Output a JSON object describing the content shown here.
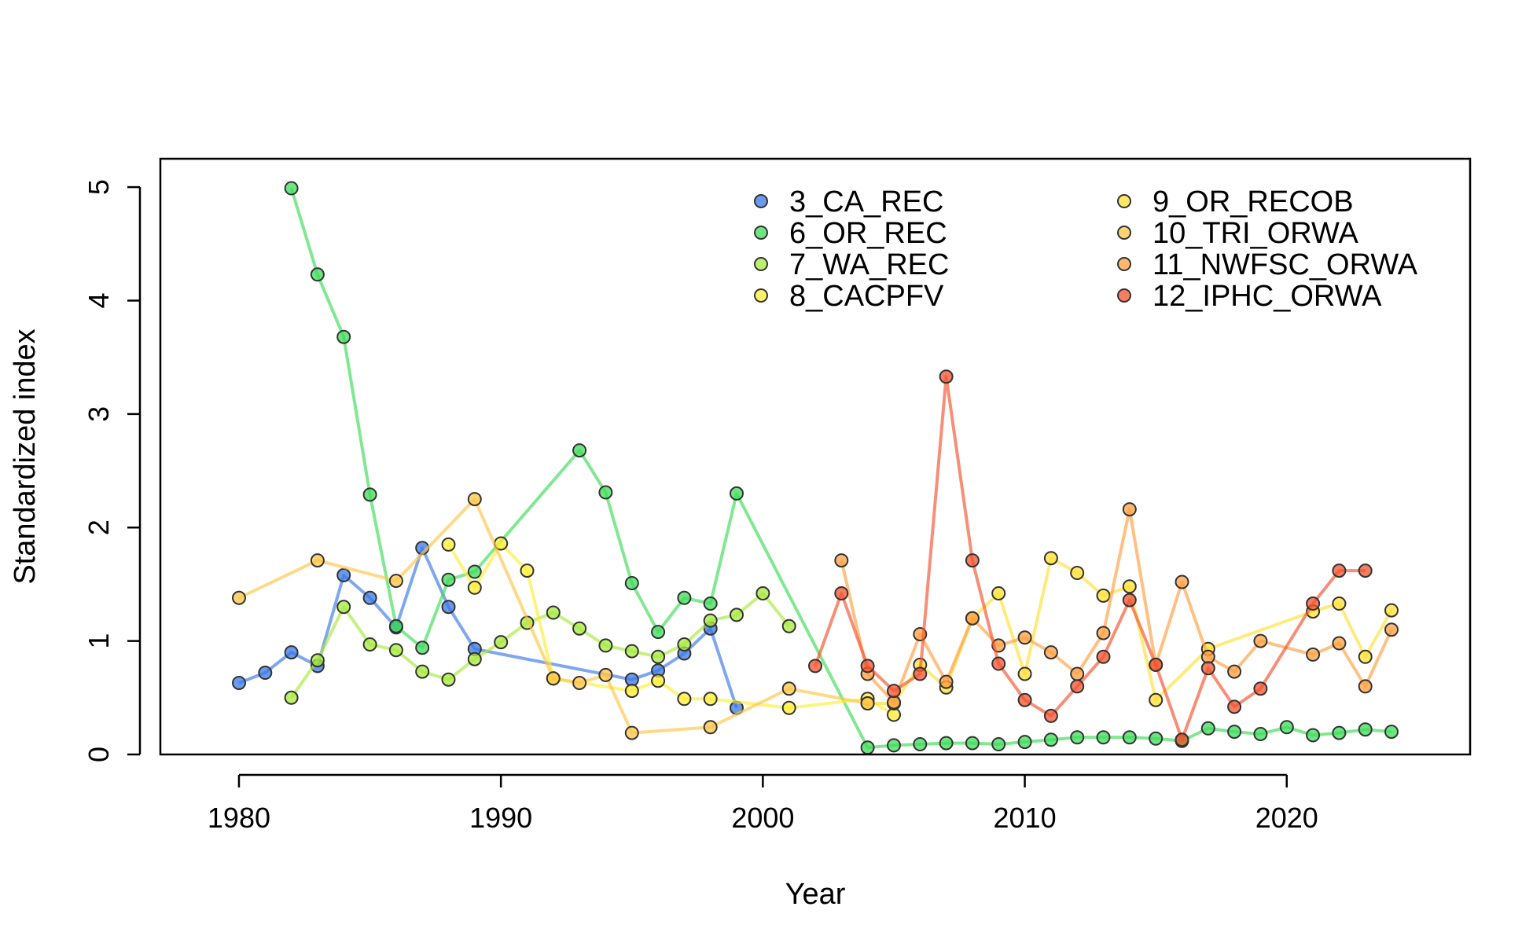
{
  "chart_data": {
    "type": "line",
    "title": "",
    "xlabel": "Year",
    "ylabel": "Standardized index",
    "xlim": [
      1977,
      2027
    ],
    "ylim": [
      0,
      5.25
    ],
    "x_ticks": [
      1980,
      1990,
      2000,
      2010,
      2020
    ],
    "y_ticks": [
      0,
      1,
      2,
      3,
      4,
      5
    ],
    "legend_position": "top-right",
    "grid": false,
    "series": [
      {
        "name": "3_CA_REC",
        "color": "#3a78e6",
        "points": [
          [
            1980,
            0.63
          ],
          [
            1981,
            0.72
          ],
          [
            1982,
            0.9
          ],
          [
            1983,
            0.78
          ],
          [
            1984,
            1.58
          ],
          [
            1985,
            1.38
          ],
          [
            1986,
            1.12
          ],
          [
            1987,
            1.82
          ],
          [
            1988,
            1.3
          ],
          [
            1989,
            0.93
          ],
          [
            1995,
            0.66
          ],
          [
            1996,
            0.74
          ],
          [
            1997,
            0.89
          ],
          [
            1998,
            1.11
          ],
          [
            1999,
            0.41
          ]
        ]
      },
      {
        "name": "6_OR_REC",
        "color": "#3edc58",
        "points": [
          [
            1982,
            4.99
          ],
          [
            1983,
            4.23
          ],
          [
            1984,
            3.68
          ],
          [
            1985,
            2.29
          ],
          [
            1986,
            1.13
          ],
          [
            1987,
            0.94
          ],
          [
            1988,
            1.54
          ],
          [
            1989,
            1.61
          ],
          [
            1993,
            2.68
          ],
          [
            1994,
            2.31
          ],
          [
            1995,
            1.51
          ],
          [
            1996,
            1.08
          ],
          [
            1997,
            1.38
          ],
          [
            1998,
            1.33
          ],
          [
            1999,
            2.3
          ],
          [
            2004,
            0.06
          ],
          [
            2005,
            0.08
          ],
          [
            2006,
            0.09
          ],
          [
            2007,
            0.1
          ],
          [
            2008,
            0.1
          ],
          [
            2009,
            0.09
          ],
          [
            2010,
            0.11
          ],
          [
            2011,
            0.13
          ],
          [
            2012,
            0.15
          ],
          [
            2013,
            0.15
          ],
          [
            2014,
            0.15
          ],
          [
            2015,
            0.14
          ],
          [
            2016,
            0.12
          ],
          [
            2017,
            0.23
          ],
          [
            2018,
            0.2
          ],
          [
            2019,
            0.18
          ],
          [
            2020,
            0.24
          ],
          [
            2021,
            0.17
          ],
          [
            2022,
            0.19
          ],
          [
            2023,
            0.22
          ],
          [
            2024,
            0.2
          ]
        ]
      },
      {
        "name": "7_WA_REC",
        "color": "#a6ea3a",
        "points": [
          [
            1982,
            0.5
          ],
          [
            1983,
            0.83
          ],
          [
            1984,
            1.3
          ],
          [
            1985,
            0.97
          ],
          [
            1986,
            0.92
          ],
          [
            1987,
            0.73
          ],
          [
            1988,
            0.66
          ],
          [
            1989,
            0.84
          ],
          [
            1990,
            0.99
          ],
          [
            1991,
            1.16
          ],
          [
            1992,
            1.25
          ],
          [
            1993,
            1.11
          ],
          [
            1994,
            0.96
          ],
          [
            1995,
            0.91
          ],
          [
            1996,
            0.86
          ],
          [
            1997,
            0.97
          ],
          [
            1998,
            1.18
          ],
          [
            1999,
            1.23
          ],
          [
            2000,
            1.42
          ],
          [
            2001,
            1.13
          ]
        ]
      },
      {
        "name": "8_CACPFV",
        "color": "#ffee33",
        "points": [
          [
            1988,
            1.85
          ],
          [
            1989,
            1.47
          ],
          [
            1990,
            1.86
          ],
          [
            1991,
            1.62
          ],
          [
            1992,
            0.67
          ],
          [
            1995,
            0.56
          ],
          [
            1996,
            0.65
          ],
          [
            1997,
            0.49
          ],
          [
            1998,
            0.49
          ],
          [
            2001,
            0.41
          ],
          [
            2004,
            0.49
          ],
          [
            2005,
            0.35
          ]
        ]
      },
      {
        "name": "9_OR_RECOB",
        "color": "#ffe033",
        "points": [
          [
            2004,
            0.45
          ],
          [
            2005,
            0.45
          ],
          [
            2006,
            0.79
          ],
          [
            2007,
            0.59
          ],
          [
            2008,
            1.2
          ],
          [
            2009,
            1.42
          ],
          [
            2010,
            0.71
          ],
          [
            2011,
            1.73
          ],
          [
            2012,
            1.6
          ],
          [
            2013,
            1.4
          ],
          [
            2014,
            1.48
          ],
          [
            2015,
            0.48
          ],
          [
            2017,
            0.93
          ],
          [
            2021,
            1.26
          ],
          [
            2022,
            1.33
          ],
          [
            2023,
            0.86
          ],
          [
            2024,
            1.27
          ]
        ]
      },
      {
        "name": "10_TRI_ORWA",
        "color": "#ffc445",
        "points": [
          [
            1980,
            1.38
          ],
          [
            1983,
            1.71
          ],
          [
            1986,
            1.53
          ],
          [
            1989,
            2.25
          ],
          [
            1992,
            0.67
          ],
          [
            1993,
            0.63
          ],
          [
            1994,
            0.7
          ],
          [
            1995,
            0.19
          ],
          [
            1998,
            0.24
          ],
          [
            2001,
            0.58
          ],
          [
            2004,
            0.45
          ]
        ]
      },
      {
        "name": "11_NWFSC_ORWA",
        "color": "#ff9f40",
        "points": [
          [
            2003,
            1.71
          ],
          [
            2004,
            0.71
          ],
          [
            2005,
            0.46
          ],
          [
            2006,
            1.06
          ],
          [
            2007,
            0.64
          ],
          [
            2008,
            1.2
          ],
          [
            2009,
            0.96
          ],
          [
            2010,
            1.03
          ],
          [
            2011,
            0.9
          ],
          [
            2012,
            0.71
          ],
          [
            2013,
            1.07
          ],
          [
            2014,
            2.16
          ],
          [
            2015,
            0.79
          ],
          [
            2016,
            1.52
          ],
          [
            2017,
            0.86
          ],
          [
            2018,
            0.73
          ],
          [
            2019,
            1.0
          ],
          [
            2021,
            0.88
          ],
          [
            2022,
            0.98
          ],
          [
            2023,
            0.6
          ],
          [
            2024,
            1.1
          ]
        ]
      },
      {
        "name": "12_IPHC_ORWA",
        "color": "#f2522e",
        "points": [
          [
            2002,
            0.78
          ],
          [
            2003,
            1.42
          ],
          [
            2004,
            0.78
          ],
          [
            2005,
            0.56
          ],
          [
            2006,
            0.71
          ],
          [
            2007,
            3.33
          ],
          [
            2008,
            1.71
          ],
          [
            2009,
            0.8
          ],
          [
            2010,
            0.48
          ],
          [
            2011,
            0.34
          ],
          [
            2012,
            0.6
          ],
          [
            2013,
            0.86
          ],
          [
            2014,
            1.36
          ],
          [
            2015,
            0.79
          ],
          [
            2016,
            0.13
          ],
          [
            2017,
            0.76
          ],
          [
            2018,
            0.42
          ],
          [
            2019,
            0.58
          ],
          [
            2021,
            1.33
          ],
          [
            2022,
            1.62
          ],
          [
            2023,
            1.62
          ]
        ]
      }
    ]
  }
}
